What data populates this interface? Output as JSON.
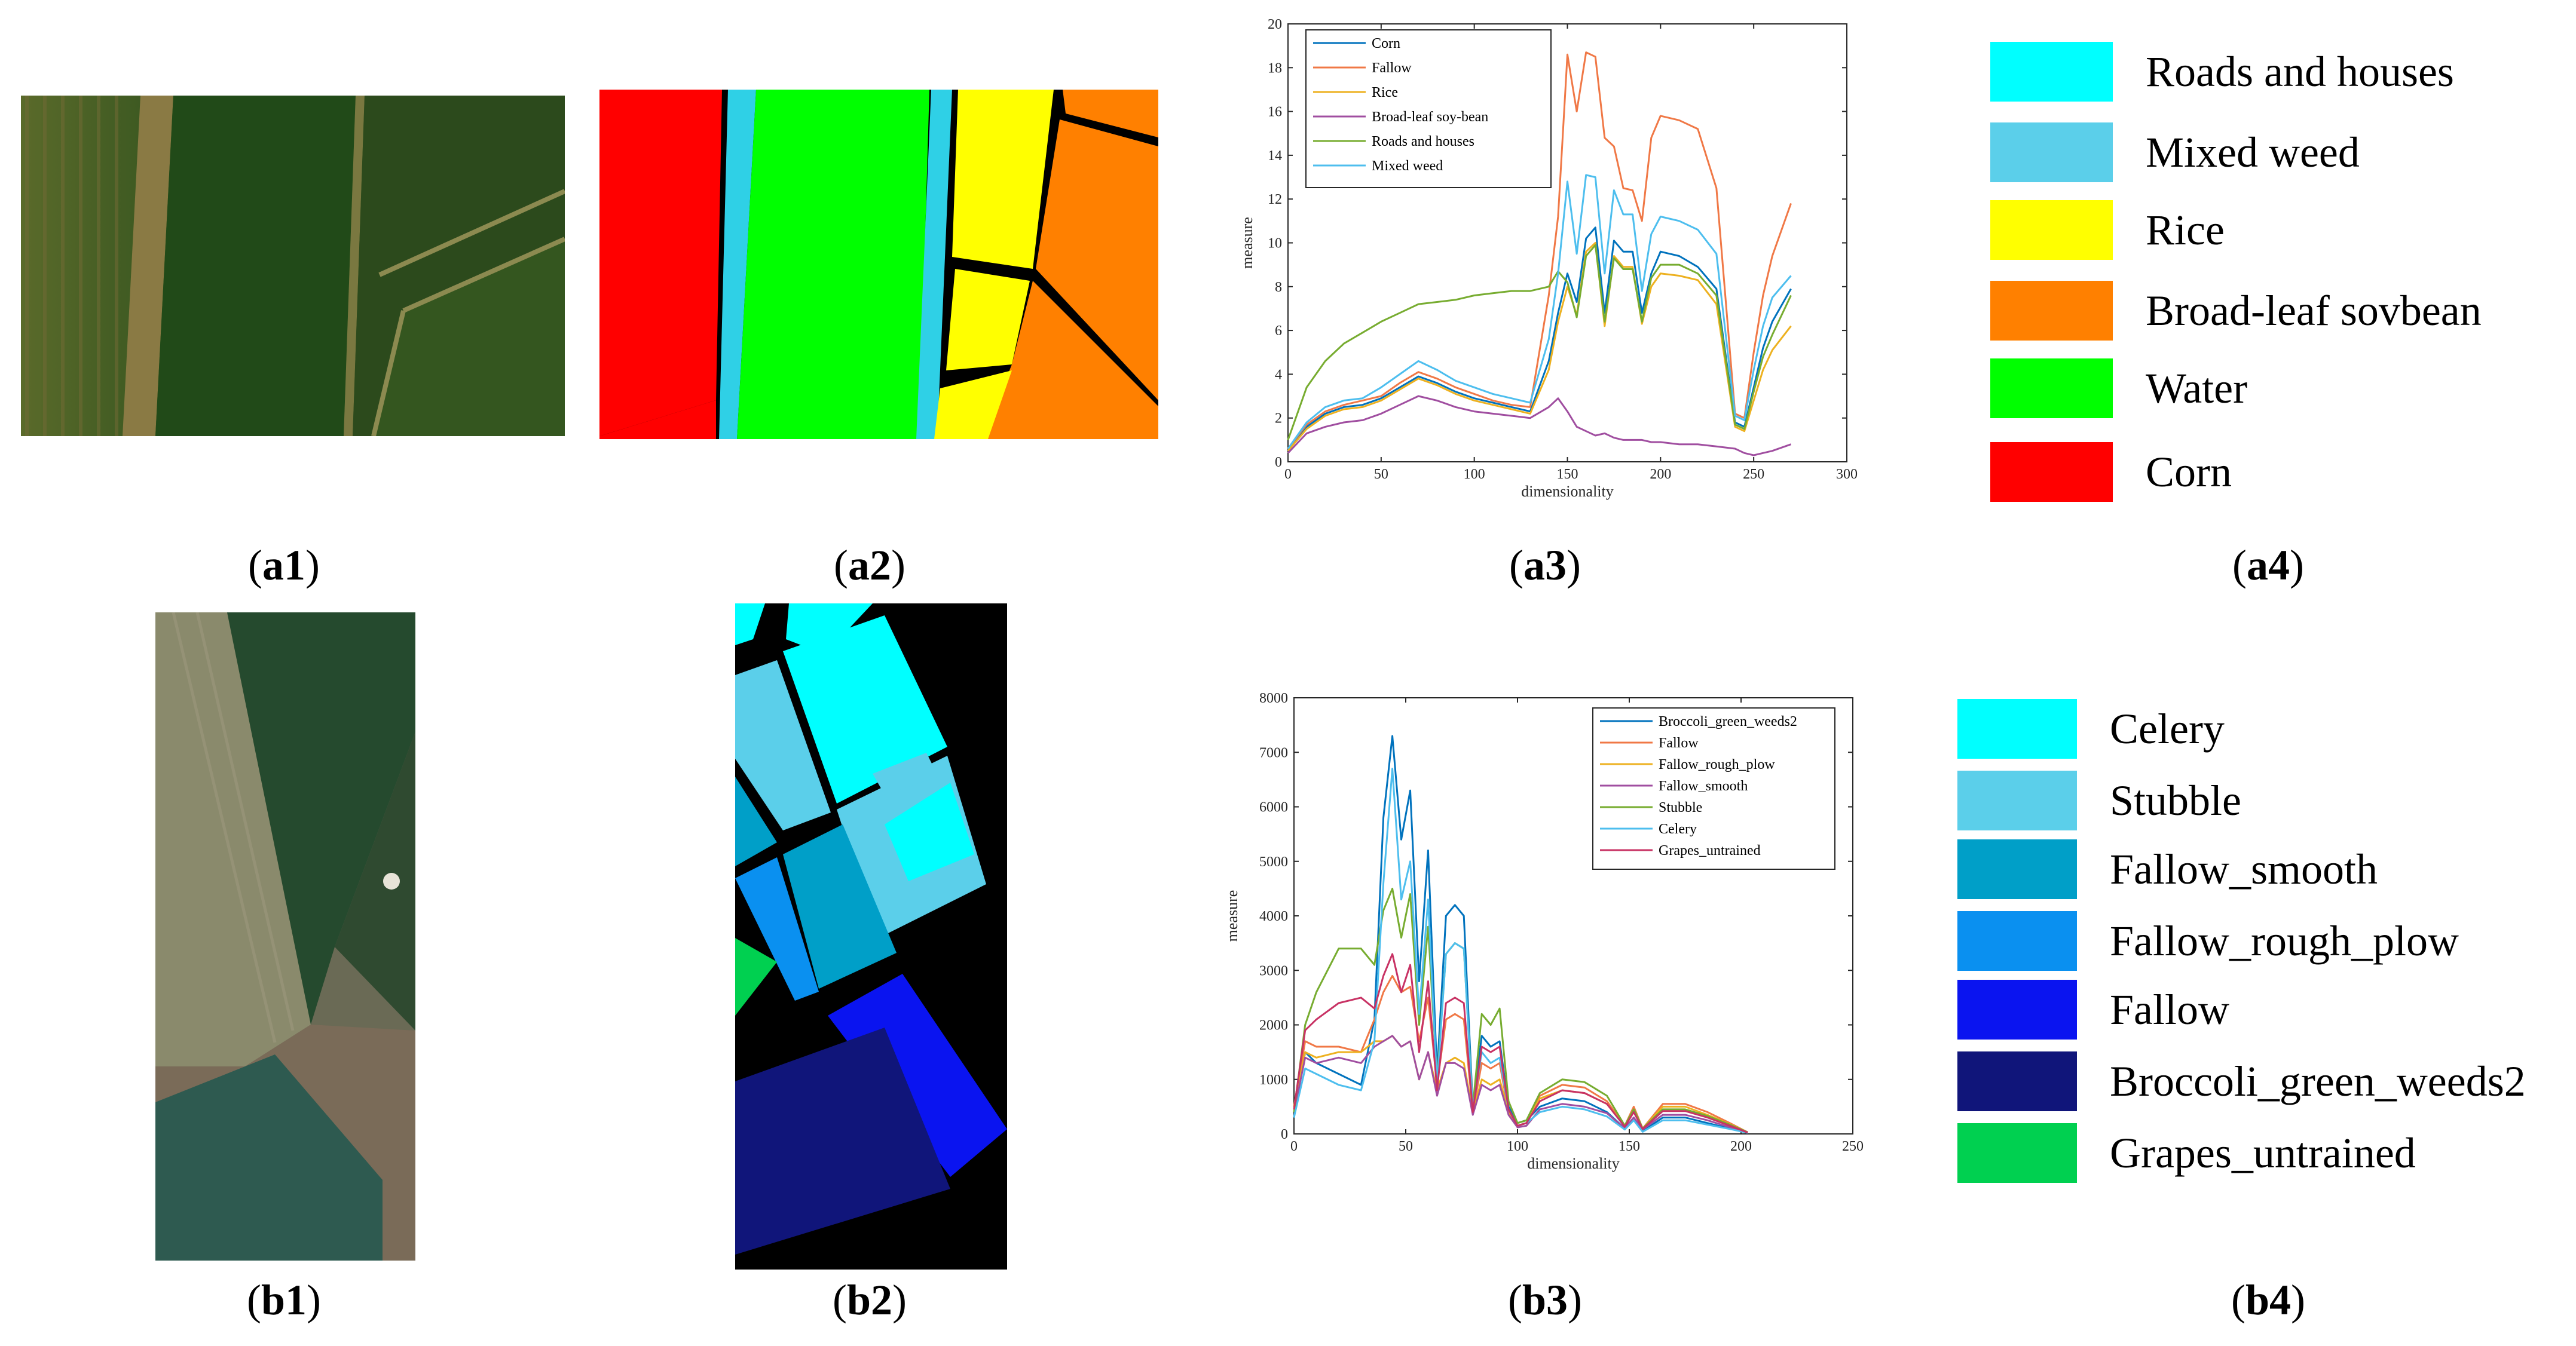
{
  "panels": {
    "a1": {
      "label": "a1",
      "description_kind": "aerial-image"
    },
    "a2": {
      "label": "a2"
    },
    "a3": {
      "label": "a3"
    },
    "a4": {
      "label": "a4"
    },
    "b1": {
      "label": "b1"
    },
    "b2": {
      "label": "b2"
    },
    "b3": {
      "label": "b3"
    },
    "b4": {
      "label": "b4"
    }
  },
  "legend_a": [
    {
      "name": "Roads and houses",
      "color": "#00FFFF"
    },
    {
      "name": "Mixed weed",
      "color": "#5BCFEA"
    },
    {
      "name": "Rice",
      "color": "#FFFF00"
    },
    {
      "name": "Broad-leaf sovbean",
      "color": "#FF8000"
    },
    {
      "name": "Water",
      "color": "#00FF00"
    },
    {
      "name": "Corn",
      "color": "#FF0000"
    }
  ],
  "legend_b": [
    {
      "name": "Celery",
      "color": "#00FFFF"
    },
    {
      "name": "Stubble",
      "color": "#5BCFEA"
    },
    {
      "name": "Fallow_smooth",
      "color": "#009FC8"
    },
    {
      "name": "Fallow_rough_plow",
      "color": "#0A90F0"
    },
    {
      "name": "Fallow",
      "color": "#0A14F0"
    },
    {
      "name": "Broccoli_green_weeds2",
      "color": "#10157A"
    },
    {
      "name": "Grapes_untrained",
      "color": "#00D050"
    }
  ],
  "chart_data": [
    {
      "id": "a3",
      "type": "line",
      "title": "",
      "xlabel": "dimensionality",
      "ylabel": "measure",
      "xlim": [
        0,
        300
      ],
      "ylim": [
        0,
        20
      ],
      "xticks": [
        0,
        50,
        100,
        150,
        200,
        250,
        300
      ],
      "yticks": [
        0,
        2,
        4,
        6,
        8,
        10,
        12,
        14,
        16,
        18,
        20
      ],
      "legend_position": "top-left",
      "x": [
        0,
        10,
        20,
        30,
        40,
        50,
        60,
        70,
        80,
        90,
        100,
        110,
        120,
        130,
        140,
        145,
        150,
        155,
        160,
        165,
        170,
        175,
        180,
        185,
        190,
        195,
        200,
        210,
        220,
        230,
        240,
        245,
        250,
        255,
        260,
        270
      ],
      "series": [
        {
          "name": "Corn",
          "color": "#0072BD",
          "values": [
            0.5,
            1.6,
            2.2,
            2.5,
            2.6,
            2.9,
            3.4,
            3.9,
            3.6,
            3.2,
            2.9,
            2.7,
            2.5,
            2.3,
            4.6,
            6.8,
            8.6,
            7.3,
            10.2,
            10.7,
            6.8,
            10.1,
            9.6,
            9.6,
            6.8,
            8.6,
            9.6,
            9.4,
            8.9,
            7.9,
            1.8,
            1.6,
            3.4,
            5.2,
            6.4,
            7.9
          ]
        },
        {
          "name": "Fallow",
          "color": "#F07846",
          "values": [
            0.6,
            1.7,
            2.3,
            2.6,
            2.8,
            3.0,
            3.6,
            4.1,
            3.8,
            3.4,
            3.1,
            2.8,
            2.6,
            2.5,
            7.6,
            11.2,
            18.6,
            16.0,
            18.7,
            18.5,
            14.8,
            14.4,
            12.5,
            12.4,
            11.0,
            14.8,
            15.8,
            15.6,
            15.2,
            12.5,
            2.2,
            2.0,
            5.0,
            7.6,
            9.4,
            11.8
          ]
        },
        {
          "name": "Rice",
          "color": "#EDB120",
          "values": [
            0.5,
            1.5,
            2.1,
            2.4,
            2.5,
            2.8,
            3.3,
            3.8,
            3.5,
            3.1,
            2.8,
            2.6,
            2.4,
            2.2,
            4.2,
            6.4,
            8.0,
            6.7,
            9.6,
            10.0,
            6.2,
            9.4,
            8.9,
            8.9,
            6.3,
            8.0,
            8.6,
            8.5,
            8.3,
            7.2,
            1.6,
            1.4,
            2.8,
            4.2,
            5.1,
            6.2
          ]
        },
        {
          "name": "Broad-leaf soy-bean",
          "color": "#A04EA0",
          "values": [
            0.4,
            1.3,
            1.6,
            1.8,
            1.9,
            2.2,
            2.6,
            3.0,
            2.8,
            2.5,
            2.3,
            2.2,
            2.1,
            2.0,
            2.5,
            2.9,
            2.3,
            1.6,
            1.4,
            1.2,
            1.3,
            1.1,
            1.0,
            1.0,
            1.0,
            0.9,
            0.9,
            0.8,
            0.8,
            0.7,
            0.6,
            0.4,
            0.3,
            0.4,
            0.5,
            0.8
          ]
        },
        {
          "name": "Roads and houses",
          "color": "#77AC30",
          "values": [
            1.0,
            3.4,
            4.6,
            5.4,
            5.9,
            6.4,
            6.8,
            7.2,
            7.3,
            7.4,
            7.6,
            7.7,
            7.8,
            7.8,
            8.0,
            8.7,
            8.2,
            6.6,
            9.4,
            9.9,
            6.4,
            9.3,
            8.8,
            8.8,
            6.4,
            8.4,
            9.0,
            9.0,
            8.6,
            7.6,
            1.7,
            1.5,
            3.2,
            4.8,
            5.8,
            7.6
          ]
        },
        {
          "name": "Mixed weed",
          "color": "#4DBEEE",
          "values": [
            0.6,
            1.8,
            2.5,
            2.8,
            2.9,
            3.4,
            4.0,
            4.6,
            4.2,
            3.7,
            3.4,
            3.1,
            2.9,
            2.7,
            5.6,
            8.6,
            12.8,
            9.5,
            13.1,
            13.0,
            8.6,
            12.4,
            11.3,
            11.3,
            7.8,
            10.4,
            11.2,
            11.0,
            10.6,
            9.5,
            2.1,
            1.9,
            4.2,
            6.2,
            7.5,
            8.5
          ]
        }
      ]
    },
    {
      "id": "b3",
      "type": "line",
      "title": "",
      "xlabel": "dimensionality",
      "ylabel": "measure",
      "xlim": [
        0,
        250
      ],
      "ylim": [
        0,
        8000
      ],
      "xticks": [
        0,
        50,
        100,
        150,
        200,
        250
      ],
      "yticks": [
        0,
        1000,
        2000,
        3000,
        4000,
        5000,
        6000,
        7000,
        8000
      ],
      "legend_position": "top-right",
      "x": [
        0,
        5,
        10,
        20,
        30,
        36,
        40,
        44,
        48,
        52,
        56,
        60,
        64,
        68,
        72,
        76,
        80,
        84,
        88,
        92,
        96,
        100,
        104,
        110,
        120,
        130,
        140,
        148,
        152,
        156,
        165,
        175,
        185,
        195,
        203
      ],
      "series": [
        {
          "name": "Broccoli_green_weeds2",
          "color": "#0072BD",
          "values": [
            300,
            1500,
            1300,
            1100,
            900,
            2100,
            5800,
            7300,
            5400,
            6300,
            2800,
            5200,
            1100,
            4000,
            4200,
            4000,
            500,
            1800,
            1600,
            1700,
            500,
            200,
            250,
            500,
            650,
            600,
            400,
            100,
            300,
            50,
            300,
            300,
            200,
            100,
            20
          ]
        },
        {
          "name": "Fallow",
          "color": "#F07846",
          "values": [
            500,
            1700,
            1600,
            1600,
            1500,
            2100,
            2600,
            2900,
            2600,
            2700,
            1700,
            2500,
            900,
            2100,
            2200,
            2100,
            400,
            1300,
            1200,
            1300,
            400,
            150,
            200,
            700,
            900,
            850,
            600,
            150,
            500,
            100,
            550,
            550,
            400,
            200,
            30
          ]
        },
        {
          "name": "Fallow_rough_plow",
          "color": "#EDB120",
          "values": [
            500,
            1500,
            1400,
            1500,
            1500,
            1700,
            1700,
            1800,
            1600,
            1700,
            1000,
            1500,
            800,
            1300,
            1400,
            1300,
            400,
            1000,
            900,
            1000,
            400,
            150,
            200,
            650,
            800,
            750,
            550,
            150,
            450,
            100,
            500,
            500,
            350,
            180,
            30
          ]
        },
        {
          "name": "Fallow_smooth",
          "color": "#A04EA0",
          "values": [
            400,
            1400,
            1300,
            1400,
            1300,
            1600,
            1700,
            1800,
            1600,
            1700,
            1000,
            1500,
            700,
            1300,
            1300,
            1200,
            350,
            900,
            800,
            900,
            350,
            120,
            150,
            450,
            550,
            500,
            380,
            100,
            300,
            80,
            350,
            350,
            250,
            120,
            20
          ]
        },
        {
          "name": "Stubble",
          "color": "#77AC30",
          "values": [
            400,
            2000,
            2600,
            3400,
            3400,
            3100,
            4100,
            4500,
            3600,
            4400,
            2000,
            3800,
            1000,
            3300,
            3500,
            3400,
            500,
            2200,
            2000,
            2300,
            600,
            200,
            250,
            750,
            1000,
            950,
            700,
            150,
            450,
            100,
            450,
            450,
            330,
            170,
            30
          ]
        },
        {
          "name": "Celery",
          "color": "#4DBEEE",
          "values": [
            300,
            1200,
            1100,
            900,
            800,
            1700,
            4600,
            6700,
            4300,
            5000,
            2200,
            4300,
            900,
            3300,
            3500,
            3400,
            450,
            1500,
            1300,
            1400,
            450,
            150,
            200,
            400,
            500,
            450,
            320,
            80,
            250,
            40,
            250,
            250,
            170,
            90,
            20
          ]
        },
        {
          "name": "Grapes_untrained",
          "color": "#C83264",
          "values": [
            450,
            1900,
            2100,
            2400,
            2500,
            2300,
            2900,
            3300,
            2600,
            3100,
            1500,
            2800,
            800,
            2400,
            2500,
            2400,
            400,
            1600,
            1500,
            1600,
            450,
            150,
            200,
            600,
            800,
            750,
            550,
            130,
            400,
            90,
            420,
            420,
            300,
            150,
            25
          ]
        }
      ]
    }
  ]
}
